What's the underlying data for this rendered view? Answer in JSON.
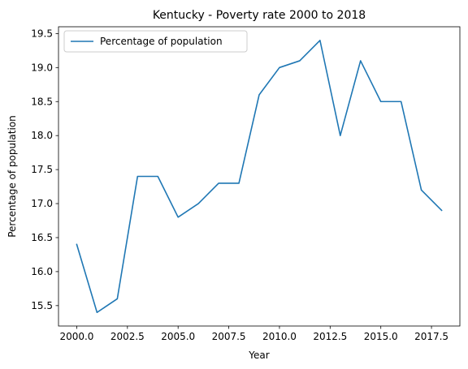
{
  "chart_data": {
    "type": "line",
    "title": "Kentucky - Poverty rate 2000 to 2018",
    "xlabel": "Year",
    "ylabel": "Percentage of population",
    "xlim": [
      1999.1,
      2018.9
    ],
    "ylim": [
      15.2,
      19.6
    ],
    "xticks": [
      2000.0,
      2002.5,
      2005.0,
      2007.5,
      2010.0,
      2012.5,
      2015.0,
      2017.5
    ],
    "xtick_labels": [
      "2000.0",
      "2002.5",
      "2005.0",
      "2007.5",
      "2010.0",
      "2012.5",
      "2015.0",
      "2017.5"
    ],
    "yticks": [
      15.5,
      16.0,
      16.5,
      17.0,
      17.5,
      18.0,
      18.5,
      19.0,
      19.5
    ],
    "ytick_labels": [
      "15.5",
      "16.0",
      "16.5",
      "17.0",
      "17.5",
      "18.0",
      "18.5",
      "19.0",
      "19.5"
    ],
    "grid": false,
    "legend": "upper-left",
    "series": [
      {
        "name": "Percentage of population",
        "color": "#1f77b4",
        "x": [
          2000,
          2001,
          2002,
          2003,
          2004,
          2005,
          2006,
          2007,
          2008,
          2009,
          2010,
          2011,
          2012,
          2013,
          2014,
          2015,
          2016,
          2017,
          2018
        ],
        "y": [
          16.4,
          15.4,
          15.6,
          17.4,
          17.4,
          16.8,
          17.0,
          17.3,
          17.3,
          18.6,
          19.0,
          19.1,
          19.4,
          18.0,
          19.1,
          18.5,
          18.5,
          17.2,
          16.9
        ]
      }
    ]
  }
}
